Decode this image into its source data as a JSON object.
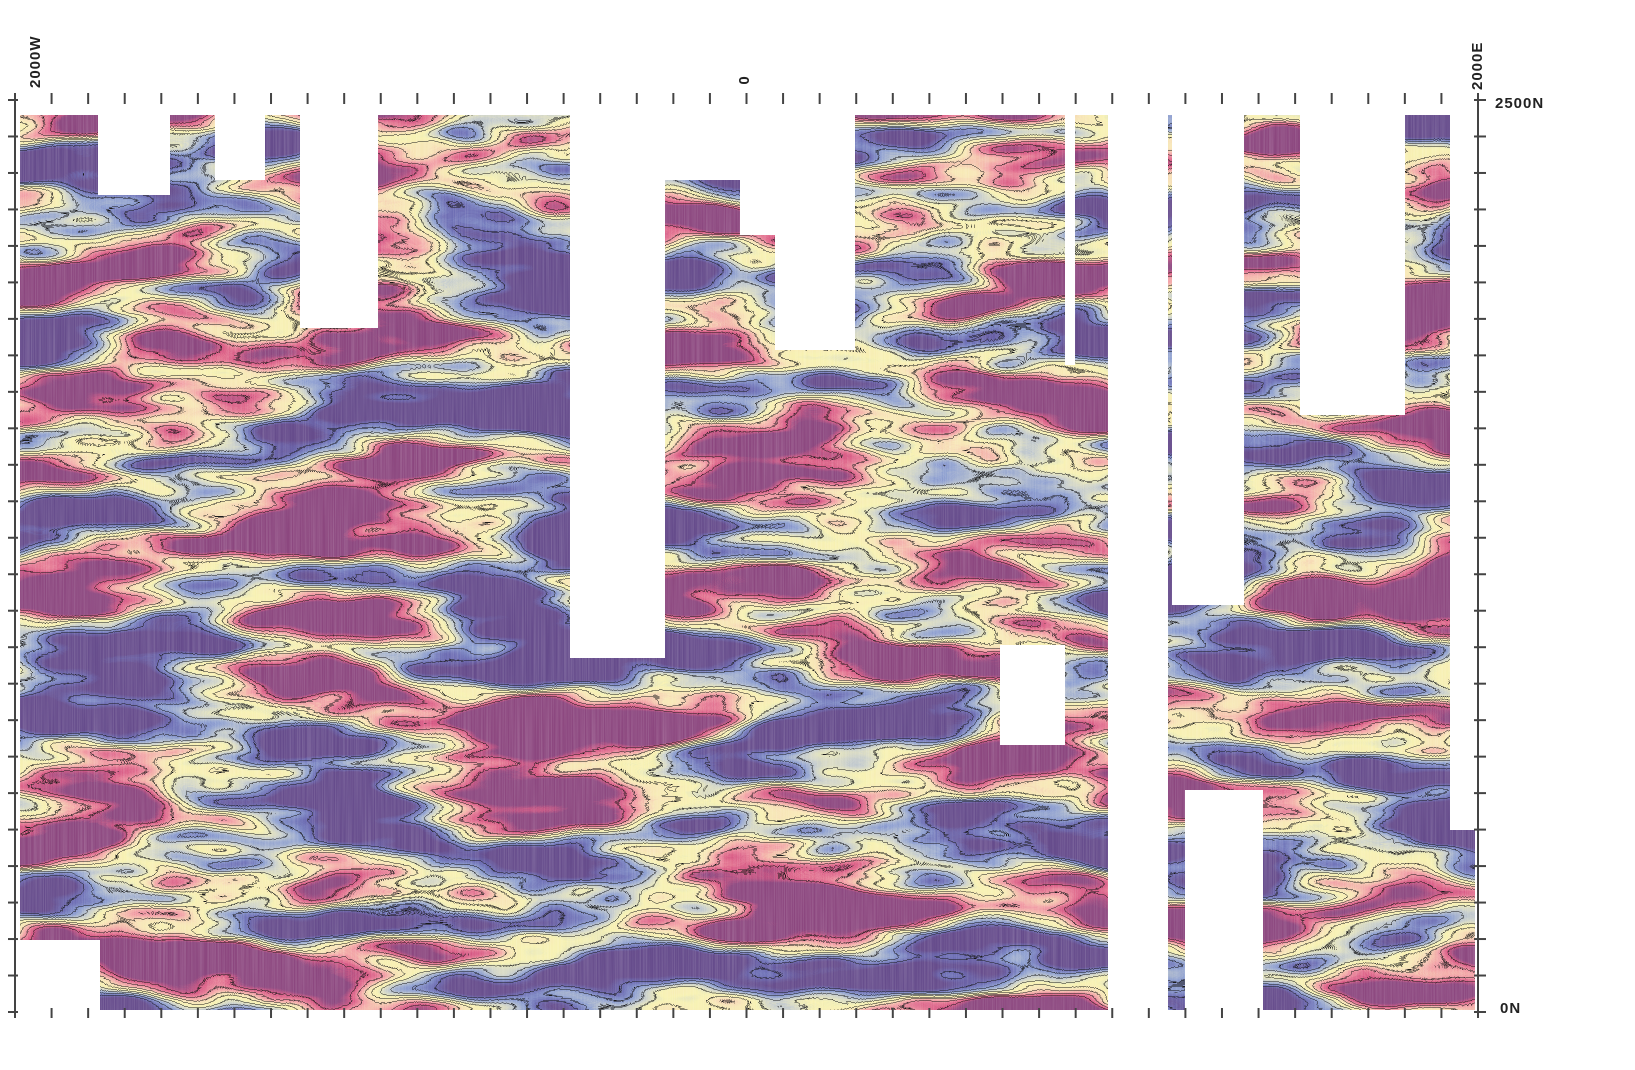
{
  "axes": {
    "top_left": "2000W",
    "top_center": "0",
    "top_right": "2000E",
    "right_top": "2500N",
    "right_bottom": "0N"
  }
}
